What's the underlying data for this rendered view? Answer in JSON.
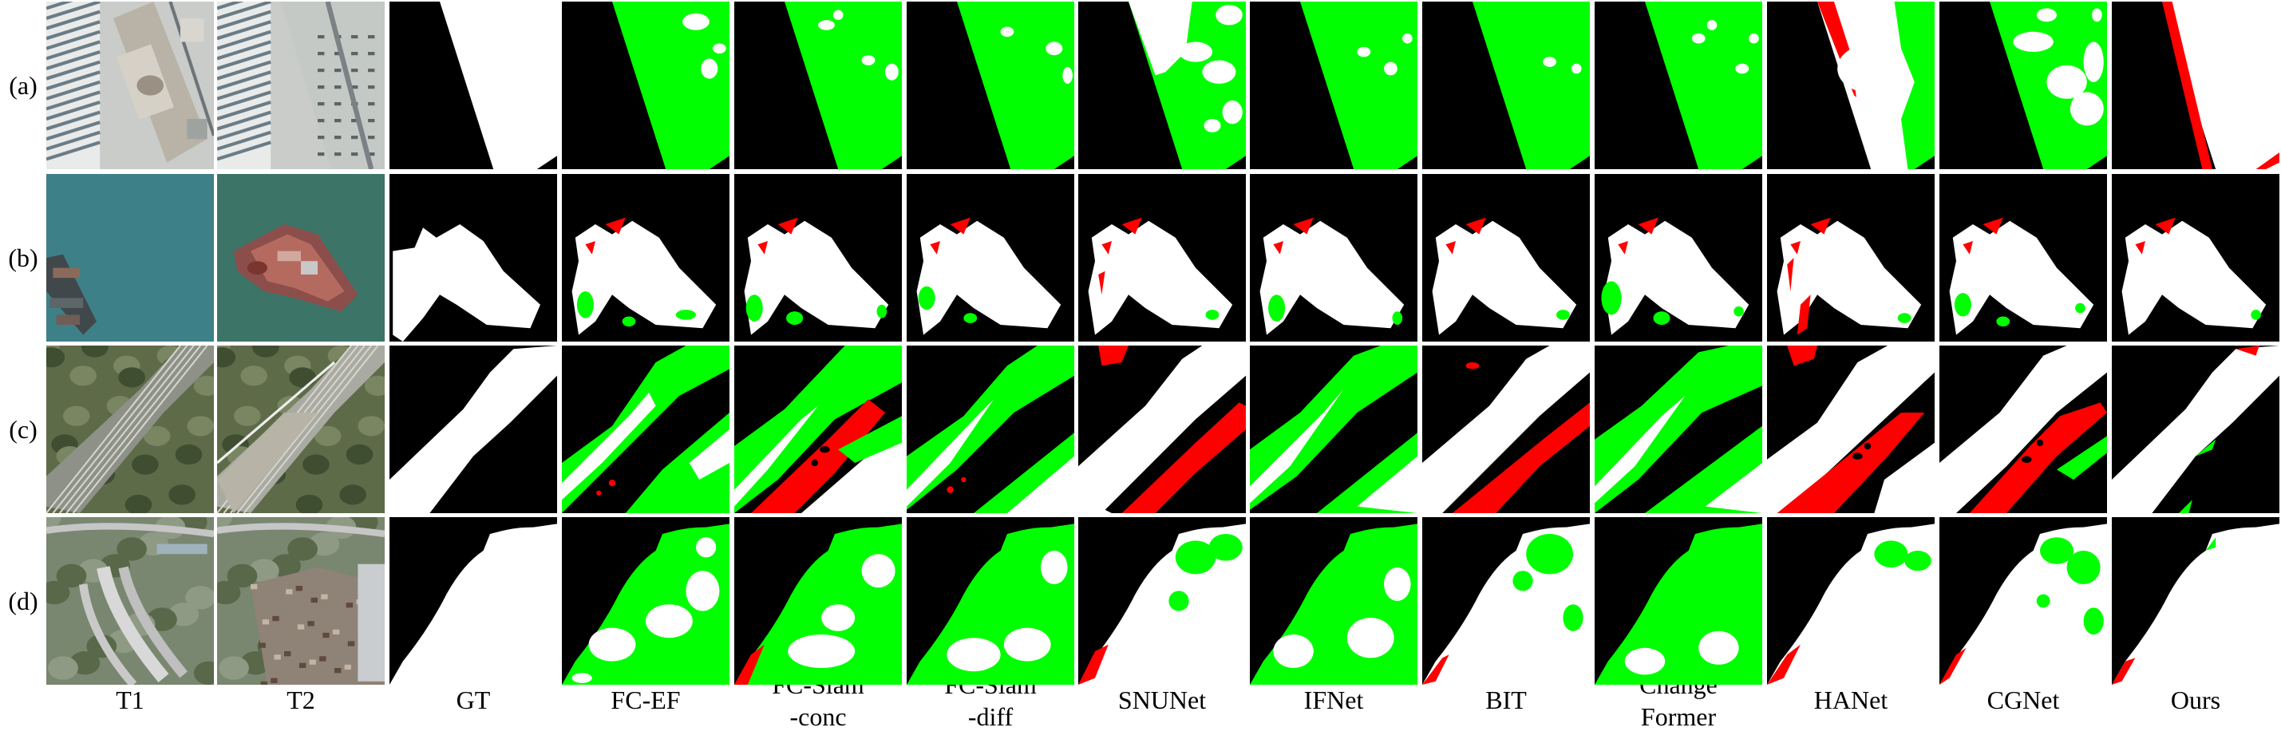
{
  "figure": {
    "row_labels": [
      "(a)",
      "(b)",
      "(c)",
      "(d)"
    ],
    "column_labels": [
      "T1",
      "T2",
      "GT",
      "FC-EF",
      "FC-Siam\n-conc",
      "FC-Siam\n-diff",
      "SNUNet",
      "IFNet",
      "BIT",
      "Change\nFormer",
      "HANet",
      "CGNet",
      "Ours"
    ],
    "legend_colors": {
      "background": "#000000",
      "true_positive": "#ffffff",
      "false_positive": "#00ff00",
      "false_negative": "#ff0000"
    }
  }
}
